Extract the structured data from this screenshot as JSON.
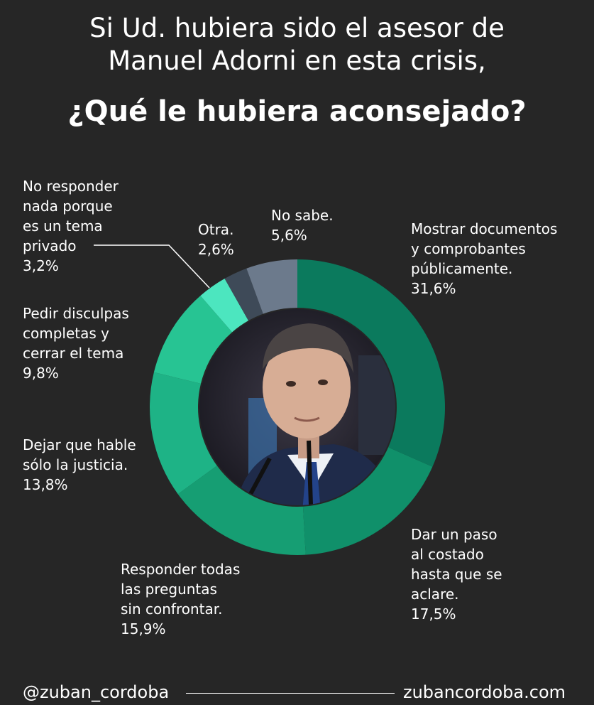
{
  "header": {
    "line1": "Si Ud. hubiera sido el asesor de",
    "line2": "Manuel Adorni en esta crisis,",
    "line3": "¿Qué le hubiera aconsejado?"
  },
  "chart_data": {
    "type": "pie",
    "title": "¿Qué le hubiera aconsejado?",
    "categories": [
      "Mostrar documentos y comprobantes públicamente.",
      "Dar un paso al costado hasta que se aclare.",
      "Responder todas las preguntas sin confrontar.",
      "Dejar que hable sólo la justicia.",
      "Pedir disculpas completas y cerrar el tema",
      "No responder nada porque es un tema privado",
      "Otra.",
      "No sabe."
    ],
    "values": [
      31.6,
      17.5,
      15.9,
      13.8,
      9.8,
      3.2,
      2.6,
      5.6
    ],
    "value_labels": [
      "31,6%",
      "17,5%",
      "15,9%",
      "13,8%",
      "9,8%",
      "3,2%",
      "2,6%",
      "5,6%"
    ],
    "colors": [
      "#0b7a5d",
      "#10906a",
      "#169e73",
      "#1eb386",
      "#27c493",
      "#4ce6bf",
      "#3e4a58",
      "#6c7a8c"
    ],
    "legend": "none",
    "label_lines": [
      [
        "Mostrar documentos",
        "y comprobantes",
        "públicamente.",
        "31,6%"
      ],
      [
        "Dar un paso",
        "al costado",
        "hasta que se",
        "aclare.",
        "17,5%"
      ],
      [
        "Responder todas",
        "las preguntas",
        "sin confrontar.",
        "15,9%"
      ],
      [
        "Dejar que hable",
        "sólo la justicia.",
        "13,8%"
      ],
      [
        "Pedir disculpas",
        "completas y",
        "cerrar el tema",
        "9,8%"
      ],
      [
        "No responder",
        "nada porque",
        "es un tema",
        "privado",
        "3,2%"
      ],
      [
        "Otra.",
        "2,6%"
      ],
      [
        "No sabe.",
        "5,6%"
      ]
    ]
  },
  "footer": {
    "handle": "@zuban_cordoba",
    "site": "zubancordoba.com"
  }
}
